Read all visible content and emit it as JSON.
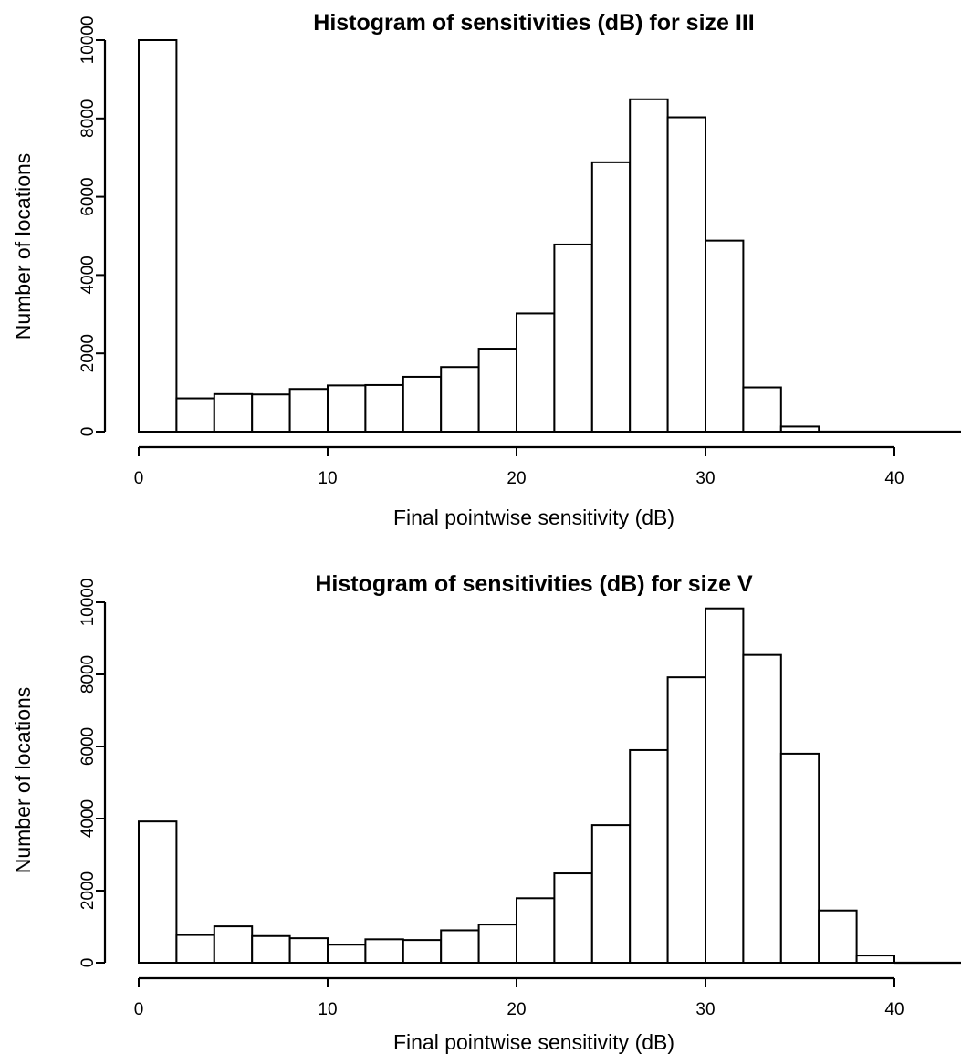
{
  "chart_data": [
    {
      "type": "bar",
      "title": "Histogram of sensitivities (dB) for size III",
      "xlabel": "Final pointwise sensitivity (dB)",
      "ylabel": "Number of locations",
      "bin_width": 2,
      "bin_starts": [
        0,
        2,
        4,
        6,
        8,
        10,
        12,
        14,
        16,
        18,
        20,
        22,
        24,
        26,
        28,
        30,
        32,
        34
      ],
      "values": [
        10000,
        850,
        960,
        950,
        1090,
        1180,
        1190,
        1400,
        1650,
        2120,
        3020,
        4780,
        6880,
        8490,
        8030,
        4880,
        1130,
        130
      ],
      "xlim": [
        0,
        43
      ],
      "ylim": [
        0,
        10000
      ],
      "xticks": [
        "0",
        "10",
        "20",
        "30",
        "40"
      ],
      "yticks": [
        "0",
        "2000",
        "4000",
        "6000",
        "8000",
        "10000"
      ]
    },
    {
      "type": "bar",
      "title": "Histogram of sensitivities (dB) for size V",
      "xlabel": "Final pointwise sensitivity (dB)",
      "ylabel": "Number of locations",
      "bin_width": 2,
      "bin_starts": [
        0,
        2,
        4,
        6,
        8,
        10,
        12,
        14,
        16,
        18,
        20,
        22,
        24,
        26,
        28,
        30,
        32,
        34,
        36,
        38
      ],
      "values": [
        3920,
        770,
        1010,
        740,
        680,
        500,
        650,
        630,
        900,
        1060,
        1790,
        2480,
        3820,
        5900,
        7920,
        9830,
        8540,
        5800,
        1450,
        200
      ],
      "xlim": [
        0,
        43
      ],
      "ylim": [
        0,
        10000
      ],
      "xticks": [
        "0",
        "10",
        "20",
        "30",
        "40"
      ],
      "yticks": [
        "0",
        "2000",
        "4000",
        "6000",
        "8000",
        "10000"
      ]
    }
  ]
}
